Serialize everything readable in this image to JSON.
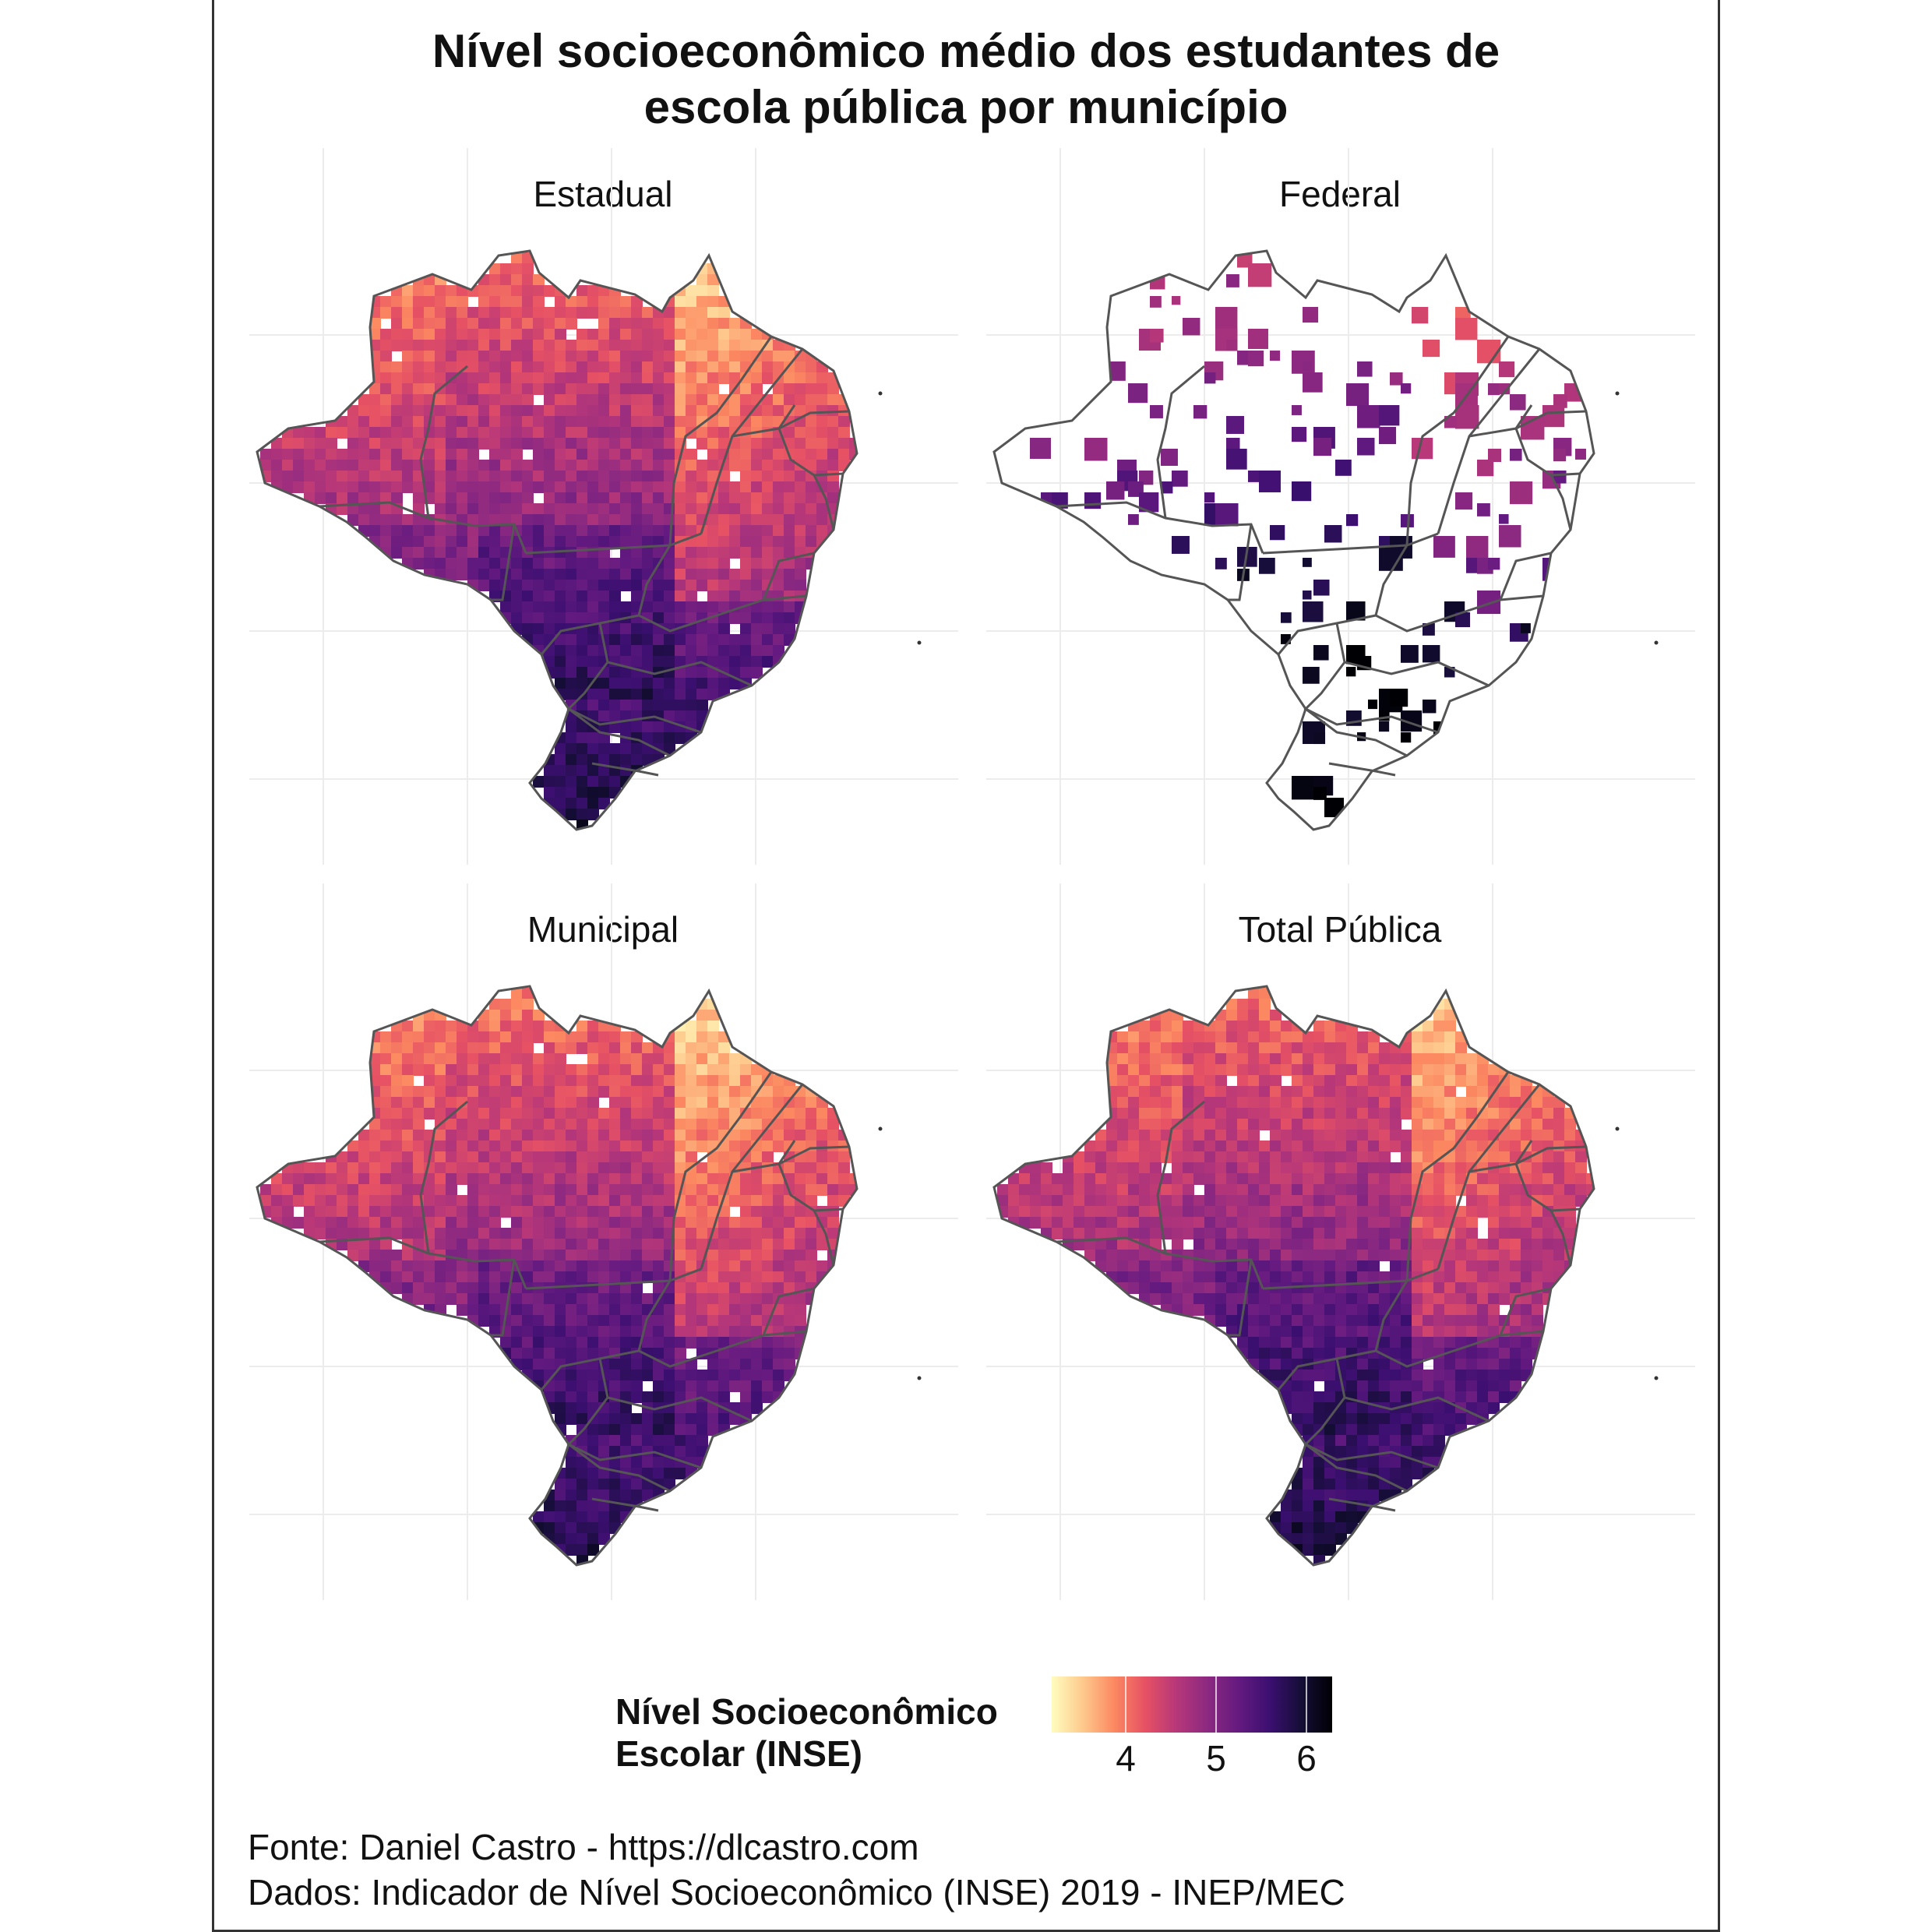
{
  "title_line1": "Nível socioeconômico médio dos estudantes de",
  "title_line2": "escola pública por município",
  "panels": [
    {
      "label": "Estadual"
    },
    {
      "label": "Federal"
    },
    {
      "label": "Municipal"
    },
    {
      "label": "Total Pública"
    }
  ],
  "legend": {
    "title_line1": "Nível Socioeconômico",
    "title_line2": "Escolar (INSE)",
    "ticks": [
      "4",
      "5",
      "6"
    ],
    "colormap": "magma (reversed)"
  },
  "caption_line1": "Fonte: Daniel Castro - https://dlcastro.com",
  "caption_line2": "Dados: Indicador de Nível Socioeconômico (INSE) 2019 - INEP/MEC",
  "colors": {
    "low": "#fffdbf",
    "mid": "#b73779",
    "high": "#000004",
    "border": "#555555",
    "frame": "#333333"
  }
}
